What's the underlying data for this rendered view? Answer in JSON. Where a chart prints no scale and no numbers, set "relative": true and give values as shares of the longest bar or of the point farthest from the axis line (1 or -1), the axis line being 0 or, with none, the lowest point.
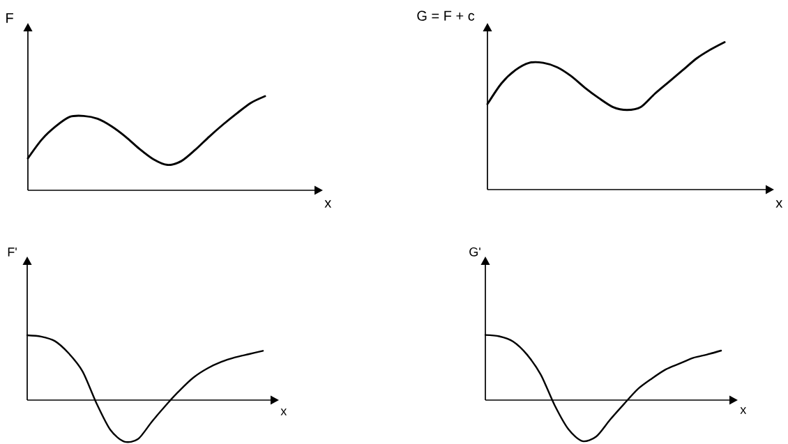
{
  "chart_data": [
    {
      "type": "line",
      "relative": true,
      "categories": [
        null,
        null,
        null,
        null,
        null,
        null,
        null,
        null,
        null,
        null,
        null,
        null,
        null,
        null,
        null,
        null,
        null,
        null
      ],
      "values": [
        0.34,
        0.54,
        0.68,
        0.78,
        0.79,
        0.76,
        0.68,
        0.57,
        0.44,
        0.33,
        0.27,
        0.31,
        0.43,
        0.57,
        0.7,
        0.82,
        0.93,
        1.0
      ],
      "color": "#000000",
      "xlabel": "x",
      "ylabel": "F"
    },
    {
      "type": "line",
      "relative": true,
      "categories": [
        null,
        null,
        null,
        null,
        null,
        null,
        null,
        null,
        null,
        null,
        null,
        null,
        null,
        null,
        null,
        null,
        null,
        null
      ],
      "values": [
        0.58,
        0.72,
        0.81,
        0.86,
        0.86,
        0.83,
        0.77,
        0.69,
        0.62,
        0.56,
        0.54,
        0.56,
        0.65,
        0.73,
        0.81,
        0.89,
        0.95,
        1.0
      ],
      "color": "#000000",
      "xlabel": "x",
      "ylabel": "G = F + c"
    },
    {
      "type": "line",
      "relative": true,
      "categories": [
        null,
        null,
        null,
        null,
        null,
        null,
        null,
        null,
        null,
        null,
        null,
        null,
        null,
        null,
        null,
        null,
        null,
        null
      ],
      "values": [
        1.0,
        0.98,
        0.91,
        0.72,
        0.44,
        -0.05,
        -0.46,
        -0.64,
        -0.6,
        -0.33,
        -0.08,
        0.15,
        0.35,
        0.49,
        0.59,
        0.66,
        0.71,
        0.76
      ],
      "color": "#000000",
      "xlabel": "x",
      "ylabel": "F'"
    },
    {
      "type": "line",
      "relative": true,
      "categories": [
        null,
        null,
        null,
        null,
        null,
        null,
        null,
        null,
        null,
        null,
        null,
        null,
        null,
        null,
        null,
        null,
        null,
        null
      ],
      "values": [
        1.0,
        0.98,
        0.9,
        0.7,
        0.39,
        -0.08,
        -0.45,
        -0.63,
        -0.56,
        -0.3,
        -0.06,
        0.17,
        0.33,
        0.47,
        0.56,
        0.65,
        0.7,
        0.76
      ],
      "color": "#000000",
      "xlabel": "x",
      "ylabel": "G'"
    }
  ]
}
